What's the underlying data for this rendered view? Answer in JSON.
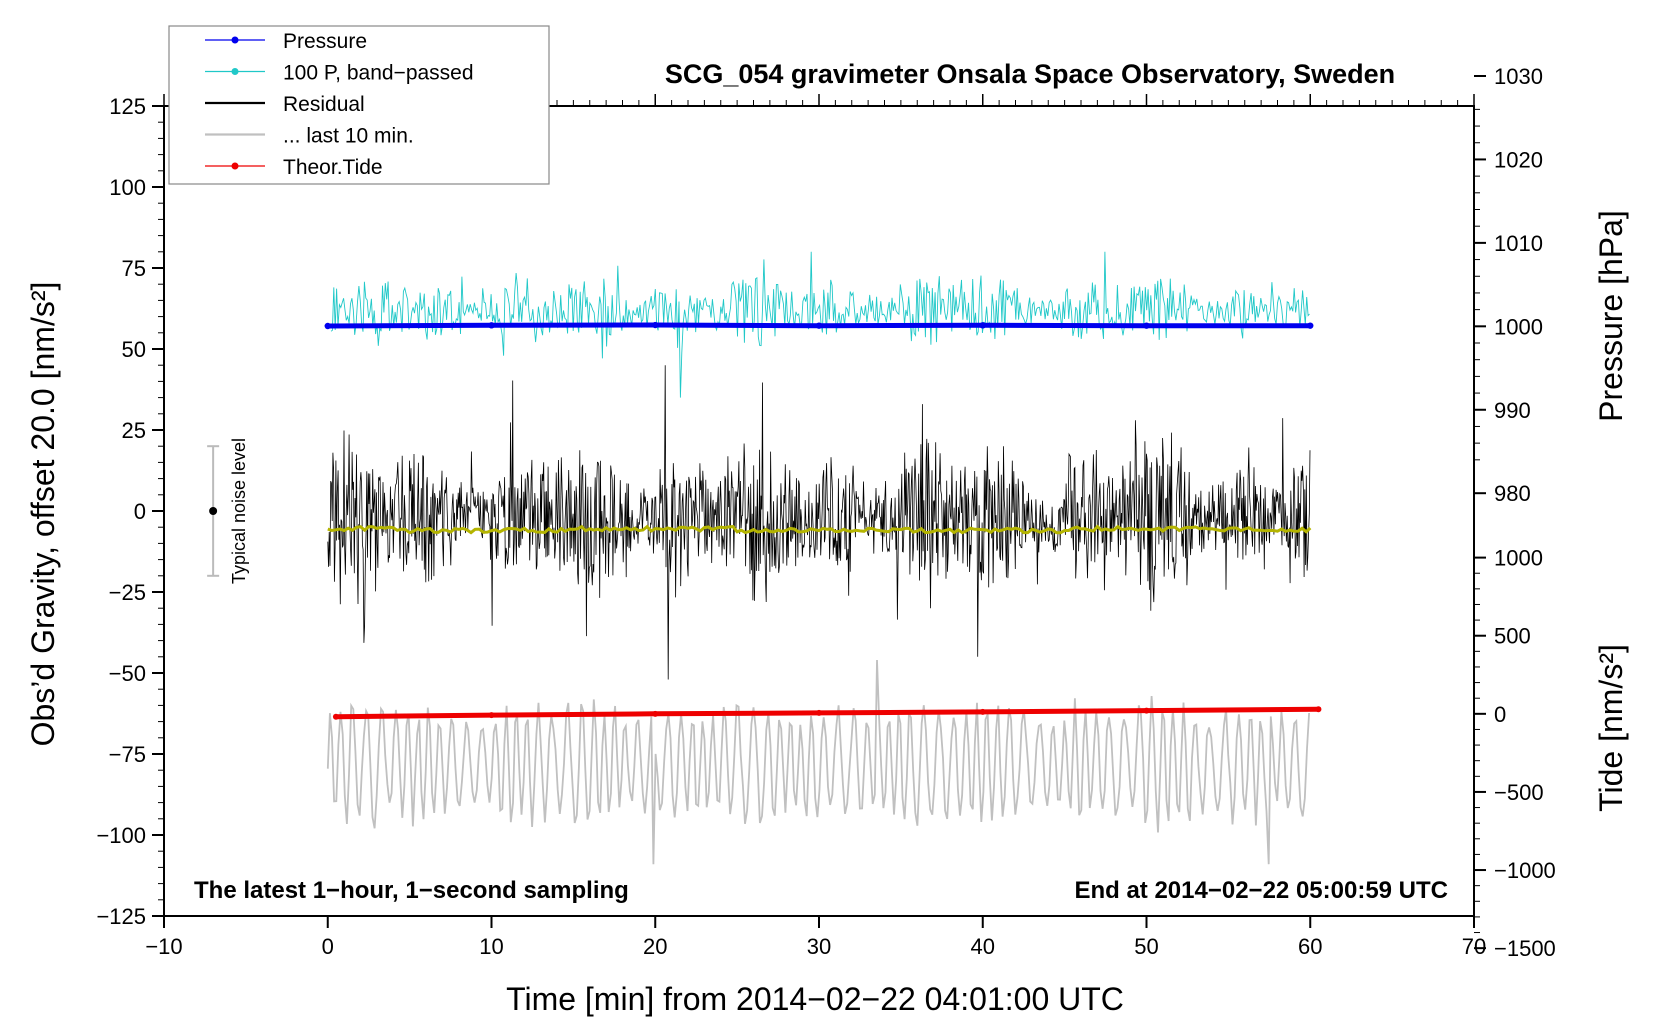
{
  "chart_data": {
    "type": "line",
    "title": "SCG_054 gravimeter Onsala Space Observatory, Sweden",
    "xlabel": "Time [min] from 2014−02−22 04:01:00 UTC",
    "ylabel_left": "Obs’d Gravity, offset 20.0 [nm/s²]",
    "ylabel_right_top": "Pressure [hPa]",
    "ylabel_right_bottom": "Tide [nm/s²]",
    "xlim": [
      -10,
      70
    ],
    "ylim_left": [
      -125,
      125
    ],
    "x_ticks": [
      -10,
      0,
      10,
      20,
      30,
      40,
      50,
      60,
      70
    ],
    "x_tick_labels": [
      "−10",
      "0",
      "10",
      "20",
      "30",
      "40",
      "50",
      "60",
      "70"
    ],
    "y_left_ticks": [
      125,
      100,
      75,
      50,
      25,
      0,
      -25,
      -50,
      -75,
      -100,
      -125
    ],
    "y_left_tick_labels": [
      "125",
      "100",
      "75",
      "50",
      "25",
      "0",
      "−25",
      "−50",
      "−75",
      "−100",
      "−125"
    ],
    "pressure_axis": {
      "ticks": [
        1030,
        1020,
        1010,
        1000,
        990,
        980
      ],
      "tick_labels": [
        "1030",
        "1020",
        "1010",
        "1000",
        "990",
        "980"
      ],
      "reference": {
        "hpa": 1000,
        "left_value": 57
      },
      "hpa_per_left_unit": 0.3883
    },
    "tide_axis": {
      "ticks": [
        1000,
        500,
        0,
        -500,
        -1000,
        -1500
      ],
      "tick_labels": [
        "1000",
        "500",
        "0",
        "−500",
        "−1000",
        "−1500"
      ],
      "reference": {
        "nm_s2": 0,
        "left_value": -62.6
      },
      "nm_s2_per_left_unit": 20.74
    },
    "legend_position": "top-left",
    "legend": [
      {
        "label": "Pressure",
        "color": "#0000ee",
        "marker": "dot"
      },
      {
        "label": "100 P, band−passed",
        "color": "#20c8c8",
        "marker": "dot"
      },
      {
        "label": "Residual",
        "color": "#000000",
        "marker": "line"
      },
      {
        "label": "... last 10 min.",
        "color": "#c0c0c0",
        "marker": "line"
      },
      {
        "label": "Theor.Tide",
        "color": "#ee0000",
        "marker": "dot"
      }
    ],
    "series": [
      {
        "name": "Pressure",
        "color": "#0000ee",
        "style": "dots",
        "x": [
          0,
          10,
          20,
          30,
          40,
          50,
          60
        ],
        "y": [
          57.1,
          57.3,
          57.4,
          57.2,
          57.3,
          57.2,
          57.2
        ]
      },
      {
        "name": "100 P, band−passed",
        "color": "#20c8c8",
        "style": "noise",
        "x_range": [
          0.2,
          60
        ],
        "center": 62,
        "amplitude": 12,
        "extremes": [
          {
            "x": 21.5,
            "y": 35
          },
          {
            "x": 29.5,
            "y": 80
          }
        ]
      },
      {
        "name": "Residual",
        "color": "#000000",
        "style": "noise",
        "x_range": [
          0,
          60
        ],
        "center": -2,
        "amplitude": 25,
        "extremes": [
          {
            "x": 20.6,
            "y": 45
          },
          {
            "x": 20.8,
            "y": -52
          },
          {
            "x": 36.3,
            "y": 33
          },
          {
            "x": 39.7,
            "y": -45
          }
        ]
      },
      {
        "name": "Residual smoothed",
        "color": "#b4b400",
        "style": "line",
        "x": [
          0,
          10,
          20,
          30,
          40,
          50,
          60
        ],
        "y": [
          -5.5,
          -6,
          -5.5,
          -6,
          -6,
          -5.5,
          -5.8
        ]
      },
      {
        "name": "... last 10 min.",
        "color": "#c0c0c0",
        "style": "oscillation",
        "x_range": [
          0,
          60
        ],
        "center": -78,
        "amplitude": 15,
        "extremes": [
          {
            "x": 19.9,
            "y": -109
          },
          {
            "x": 33.6,
            "y": -46
          },
          {
            "x": 57.4,
            "y": -109
          }
        ]
      },
      {
        "name": "Theor.Tide",
        "color": "#ee0000",
        "style": "line",
        "x": [
          0.5,
          10,
          20,
          30,
          40,
          50,
          60.5
        ],
        "y": [
          -63.5,
          -63.0,
          -62.6,
          -62.3,
          -62.0,
          -61.6,
          -61.2
        ]
      }
    ],
    "noise_level": {
      "label": "Typical noise level",
      "x": -7,
      "center": 0,
      "half_range": 20
    },
    "annotations": {
      "bottom_left": "The latest 1−hour, 1−second sampling",
      "bottom_right": "End at 2014−02−22 05:00:59 UTC"
    }
  }
}
